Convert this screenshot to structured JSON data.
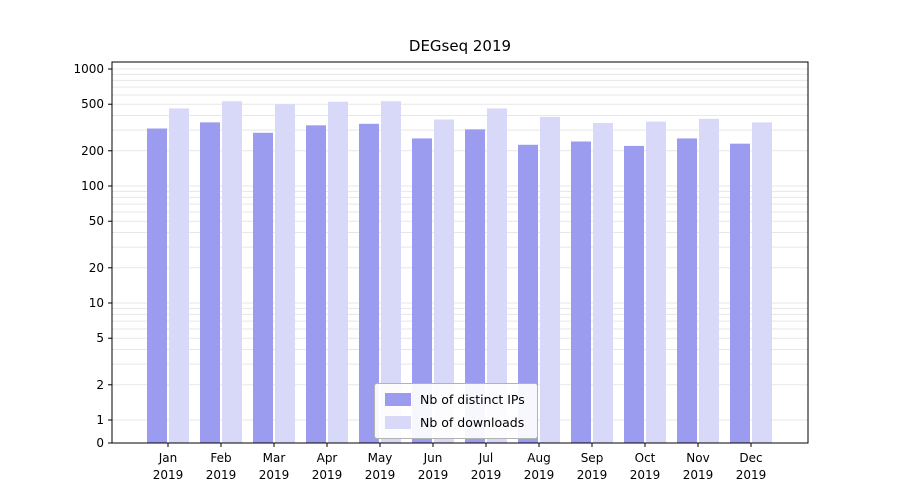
{
  "chart_data": {
    "type": "bar",
    "title": "DEGseq 2019",
    "categories": [
      "Jan",
      "Feb",
      "Mar",
      "Apr",
      "May",
      "Jun",
      "Jul",
      "Aug",
      "Sep",
      "Oct",
      "Nov",
      "Dec"
    ],
    "year_label": "2019",
    "series": [
      {
        "name": "Nb of distinct IPs",
        "color": "#9b9bef",
        "values": [
          310,
          350,
          285,
          330,
          340,
          255,
          305,
          225,
          240,
          220,
          255,
          230
        ]
      },
      {
        "name": "Nb of downloads",
        "color": "#d8d8f8",
        "values": [
          460,
          530,
          500,
          525,
          530,
          370,
          460,
          390,
          345,
          355,
          375,
          350
        ]
      }
    ],
    "yticks": [
      1000,
      500,
      200,
      100,
      50,
      20,
      10,
      5,
      2,
      1,
      0
    ],
    "gridline_values": [
      1,
      2,
      3,
      4,
      5,
      6,
      7,
      8,
      9,
      10,
      20,
      30,
      40,
      50,
      60,
      70,
      80,
      90,
      100,
      200,
      300,
      400,
      500,
      600,
      700,
      800,
      900,
      1000
    ],
    "ylim": [
      0,
      1000
    ],
    "yscale": "log-with-zero-baseline",
    "grid": true,
    "legend_position": "lower center",
    "xlabel": "",
    "ylabel": "",
    "colors": {
      "grid": "#e7e7e7",
      "axis": "#000000",
      "background": "#ffffff",
      "text": "#000000"
    }
  }
}
